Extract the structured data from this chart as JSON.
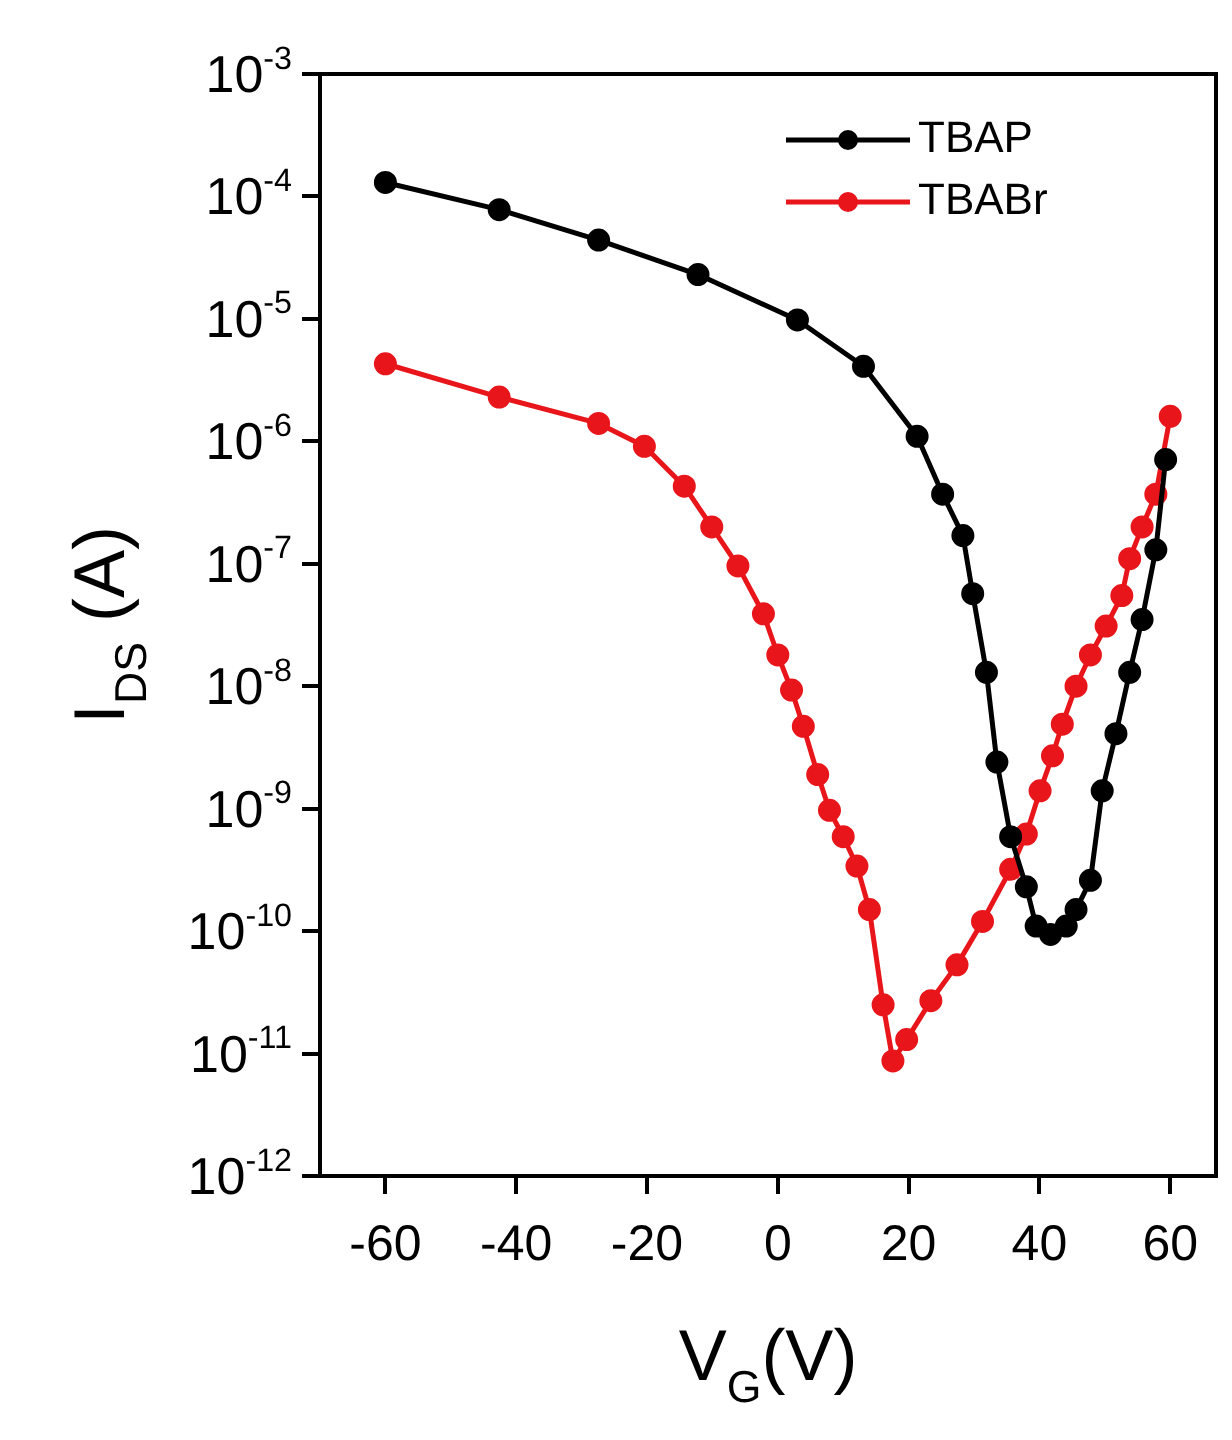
{
  "chart_data": {
    "type": "line",
    "xlabel": "V$_{G}$(V)",
    "ylabel": "I$_{DS}$ (A)",
    "log": "y",
    "marker": "circle",
    "line_style": "solid",
    "legend": "top right",
    "xlim": [
      -70,
      67
    ],
    "xticks": [
      -60,
      -40,
      -20,
      0,
      20,
      40,
      60
    ],
    "ylim": [
      1e-12,
      0.001
    ],
    "yticks": [
      {
        "value": 0.001,
        "label": "10$^{-3}$"
      },
      {
        "value": 0.0001,
        "label": "10$^{-4}$"
      },
      {
        "value": 1e-05,
        "label": "10$^{-5}$"
      },
      {
        "value": 1e-06,
        "label": "10$^{-6}$"
      },
      {
        "value": 1e-07,
        "label": "10$^{-7}$"
      },
      {
        "value": 1e-08,
        "label": "10$^{-8}$"
      },
      {
        "value": 1e-09,
        "label": "10$^{-9}$"
      },
      {
        "value": 1e-10,
        "label": "10$^{-10}$"
      },
      {
        "value": 1e-11,
        "label": "10$^{-11}$"
      },
      {
        "value": 1e-12,
        "label": "10$^{-12}$"
      }
    ],
    "series": [
      {
        "name": "TBAP",
        "color": "#000000",
        "x": [
          -60,
          -42.6,
          -27.4,
          -12.2,
          3,
          13.1,
          21.3,
          25.2,
          28.3,
          29.8,
          31.9,
          33.5,
          35.6,
          38,
          39.5,
          41.7,
          44.1,
          45.6,
          47.8,
          49.6,
          51.7,
          53.8,
          55.7,
          57.8,
          59.3
        ],
        "values": [
          0.00013,
          7.8e-05,
          4.4e-05,
          2.3e-05,
          9.8e-06,
          4.1e-06,
          1.1e-06,
          3.7e-07,
          1.7e-07,
          5.7e-08,
          1.3e-08,
          2.4e-09,
          5.9e-10,
          2.3e-10,
          1.1e-10,
          9.4e-11,
          1.1e-10,
          1.5e-10,
          2.6e-10,
          1.4e-09,
          4.1e-09,
          1.3e-08,
          3.5e-08,
          1.3e-07,
          7.1e-07
        ]
      },
      {
        "name": "TBABr",
        "color": "#e8151b",
        "x": [
          -60,
          -42.6,
          -27.4,
          -20.4,
          -14.3,
          -10.1,
          -6.1,
          -2.2,
          0,
          2.1,
          3.9,
          6.1,
          7.9,
          10,
          12.1,
          14,
          16.1,
          17.6,
          19.7,
          23.4,
          27.4,
          31.3,
          35.6,
          38,
          40.1,
          42,
          43.5,
          45.6,
          47.8,
          50.2,
          52.6,
          53.8,
          55.7,
          57.8,
          60
        ],
        "values": [
          4.3e-06,
          2.3e-06,
          1.4e-06,
          9.1e-07,
          4.3e-07,
          2e-07,
          9.6e-08,
          3.9e-08,
          1.8e-08,
          9.3e-09,
          4.7e-09,
          1.9e-09,
          9.7e-10,
          5.9e-10,
          3.4e-10,
          1.5e-10,
          2.5e-11,
          8.7e-12,
          1.3e-11,
          2.7e-11,
          5.3e-11,
          1.2e-10,
          3.2e-10,
          6.2e-10,
          1.4e-09,
          2.7e-09,
          4.9e-09,
          1e-08,
          1.8e-08,
          3.1e-08,
          5.5e-08,
          1.1e-07,
          2e-07,
          3.7e-07,
          1.6e-06
        ]
      }
    ]
  }
}
